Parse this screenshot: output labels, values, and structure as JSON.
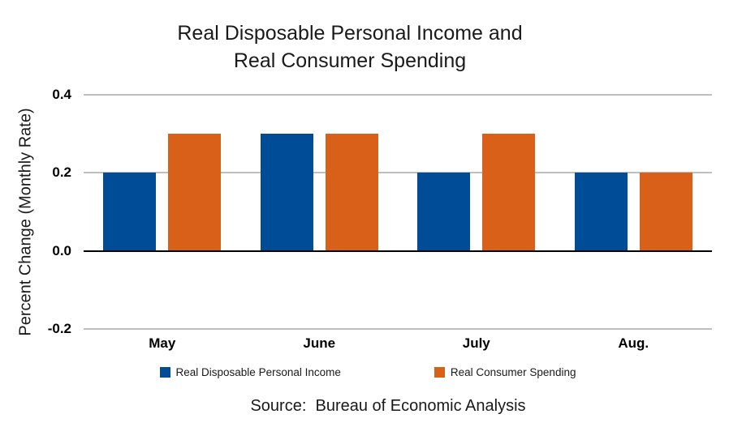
{
  "title": {
    "line1": "Real Disposable Personal Income and",
    "line2": "Real Consumer Spending"
  },
  "source_note": "Source:  Bureau of Economic Analysis",
  "chart_data": {
    "type": "bar",
    "title": "Real Disposable Personal Income and Real Consumer Spending",
    "categories": [
      "May",
      "June",
      "July",
      "Aug."
    ],
    "series": [
      {
        "name": "Real Disposable Personal Income",
        "color": "#004C97",
        "values": [
          0.2,
          0.3,
          0.2,
          0.2
        ]
      },
      {
        "name": "Real Consumer Spending",
        "color": "#D86018",
        "values": [
          0.3,
          0.3,
          0.3,
          0.2
        ]
      }
    ],
    "xlabel": "",
    "ylabel": "Percent Change (Monthly Rate)",
    "ylim": [
      -0.2,
      0.4
    ],
    "yticks": [
      0.4,
      0.2,
      0.0,
      -0.2
    ],
    "ytick_labels": [
      "0.4",
      "0.2",
      "0.0",
      "-0.2"
    ],
    "grid": true,
    "legend_position": "bottom",
    "gridline_color": "#BFBFBF",
    "zero_line_color": "#000000"
  }
}
